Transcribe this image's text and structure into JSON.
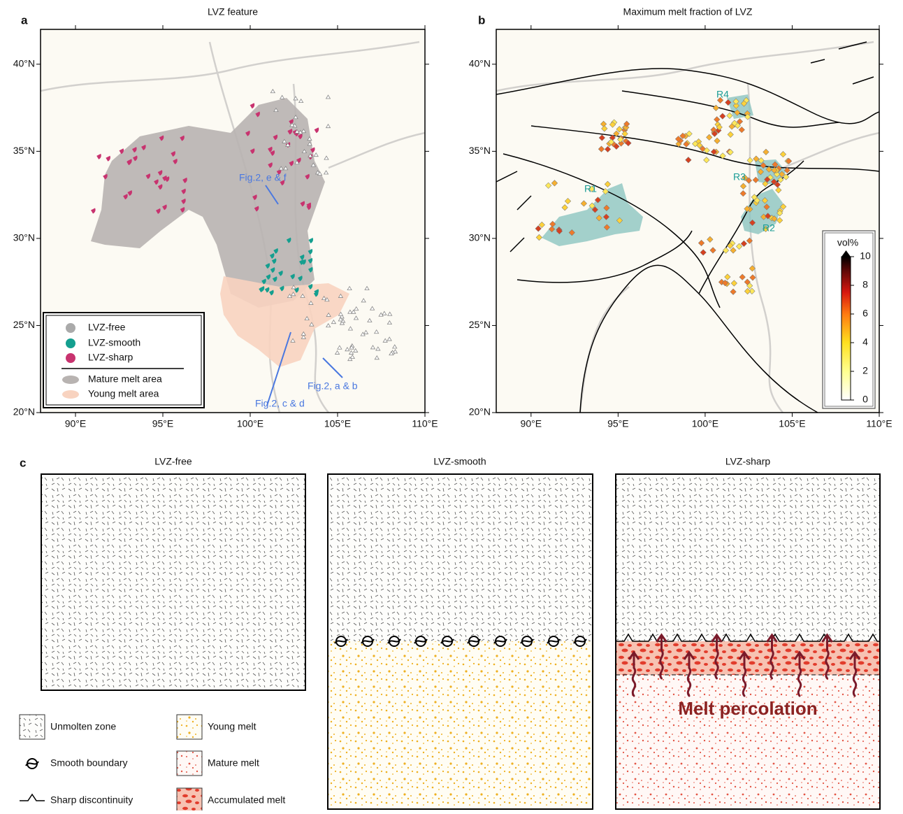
{
  "map_axes": {
    "xlim": [
      88,
      110
    ],
    "ylim": [
      20,
      42
    ],
    "xticks": [
      {
        "value": 90,
        "label": "90°E"
      },
      {
        "value": 95,
        "label": "95°E"
      },
      {
        "value": 100,
        "label": "100°E"
      },
      {
        "value": 105,
        "label": "105°E"
      },
      {
        "value": 110,
        "label": "110°E"
      }
    ],
    "yticks": [
      {
        "value": 20,
        "label": "20°N"
      },
      {
        "value": 25,
        "label": "25°N"
      },
      {
        "value": 30,
        "label": "30°N"
      },
      {
        "value": 35,
        "label": "35°N"
      },
      {
        "value": 40,
        "label": "40°N"
      }
    ]
  },
  "panel_a": {
    "label": "a",
    "title": "LVZ feature",
    "legend": [
      {
        "label": "LVZ-free",
        "color": "#aaaaaa",
        "kind": "dot"
      },
      {
        "label": "LVZ-smooth",
        "color": "#149f8f",
        "kind": "dot"
      },
      {
        "label": "LVZ-sharp",
        "color": "#c8336f",
        "kind": "dot"
      },
      {
        "label": "Mature melt area",
        "color": "#b8b3b1",
        "kind": "area"
      },
      {
        "label": "Young melt area",
        "color": "#f8d3c0",
        "kind": "area"
      }
    ],
    "annotations": [
      "Fig.2, e & f",
      "Fig.2, c & d",
      "Fig.2, a & b"
    ]
  },
  "panel_b": {
    "label": "b",
    "title": "Maximum melt fraction of LVZ",
    "regions": [
      "R1",
      "R2",
      "R3",
      "R4"
    ],
    "colorbar": {
      "title": "vol%",
      "lim": [
        0,
        10
      ],
      "ticks": [
        0,
        2,
        4,
        6,
        8,
        10
      ]
    }
  },
  "panel_c": {
    "label": "c",
    "columns": [
      "LVZ-free",
      "LVZ-smooth",
      "LVZ-sharp"
    ],
    "annotation": "Melt percolation",
    "legend": [
      "Unmolten zone",
      "Smooth boundary",
      "Sharp discontinuity",
      "Young melt",
      "Mature melt",
      "Accumulated melt"
    ]
  }
}
